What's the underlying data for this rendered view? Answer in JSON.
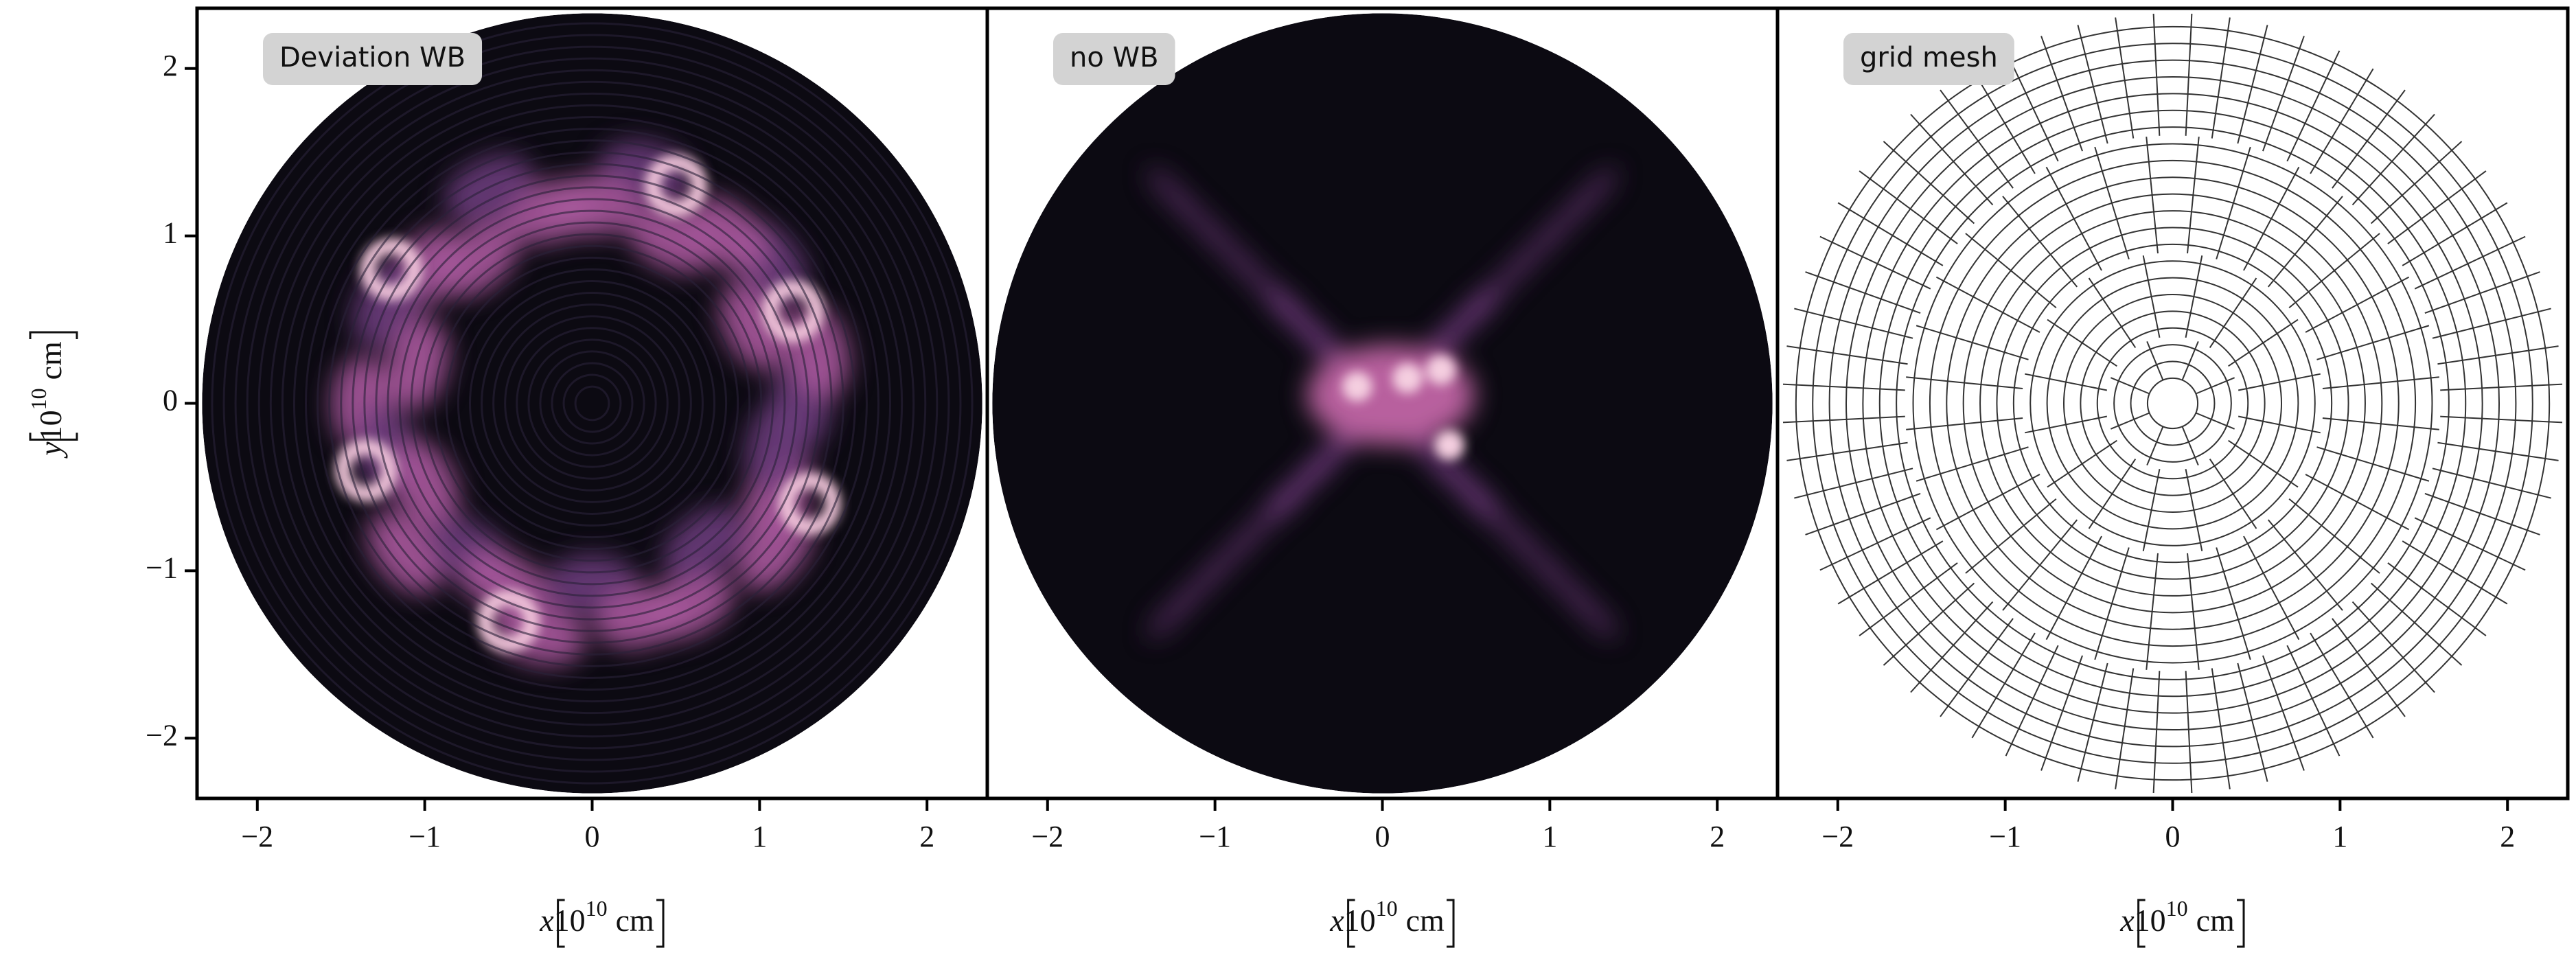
{
  "chart_data": [
    {
      "type": "heatmap",
      "label": "Deviation WB",
      "xlim": [
        -2.36,
        2.36
      ],
      "ylim": [
        -2.36,
        2.36
      ],
      "xticks": [
        {
          "value": -2,
          "label": "−2"
        },
        {
          "value": -1,
          "label": "−1"
        },
        0,
        1,
        2
      ],
      "yticks": [
        {
          "value": -2,
          "label": "−2"
        },
        {
          "value": -1,
          "label": "−1"
        },
        0,
        1,
        2
      ],
      "xlabel": {
        "var": "x",
        "base": "10",
        "exponent": "10",
        "unit": "cm"
      },
      "ylabel": {
        "var": "y",
        "base": "10",
        "exponent": "10",
        "unit": "cm"
      }
    },
    {
      "type": "heatmap",
      "label": "no WB",
      "xlim": [
        -2.36,
        2.36
      ],
      "ylim": [
        -2.36,
        2.36
      ],
      "xticks": [
        {
          "value": -2,
          "label": "−2"
        },
        {
          "value": -1,
          "label": "−1"
        },
        0,
        1,
        2
      ],
      "xlabel": {
        "var": "x",
        "base": "10",
        "exponent": "10",
        "unit": "cm"
      }
    },
    {
      "type": "mesh",
      "label": "grid mesh",
      "xlim": [
        -2.36,
        2.36
      ],
      "ylim": [
        -2.36,
        2.36
      ],
      "xticks": [
        {
          "value": -2,
          "label": "−2"
        },
        {
          "value": -1,
          "label": "−1"
        },
        0,
        1,
        2
      ],
      "xlabel": {
        "var": "x",
        "base": "10",
        "exponent": "10",
        "unit": "cm"
      }
    }
  ]
}
